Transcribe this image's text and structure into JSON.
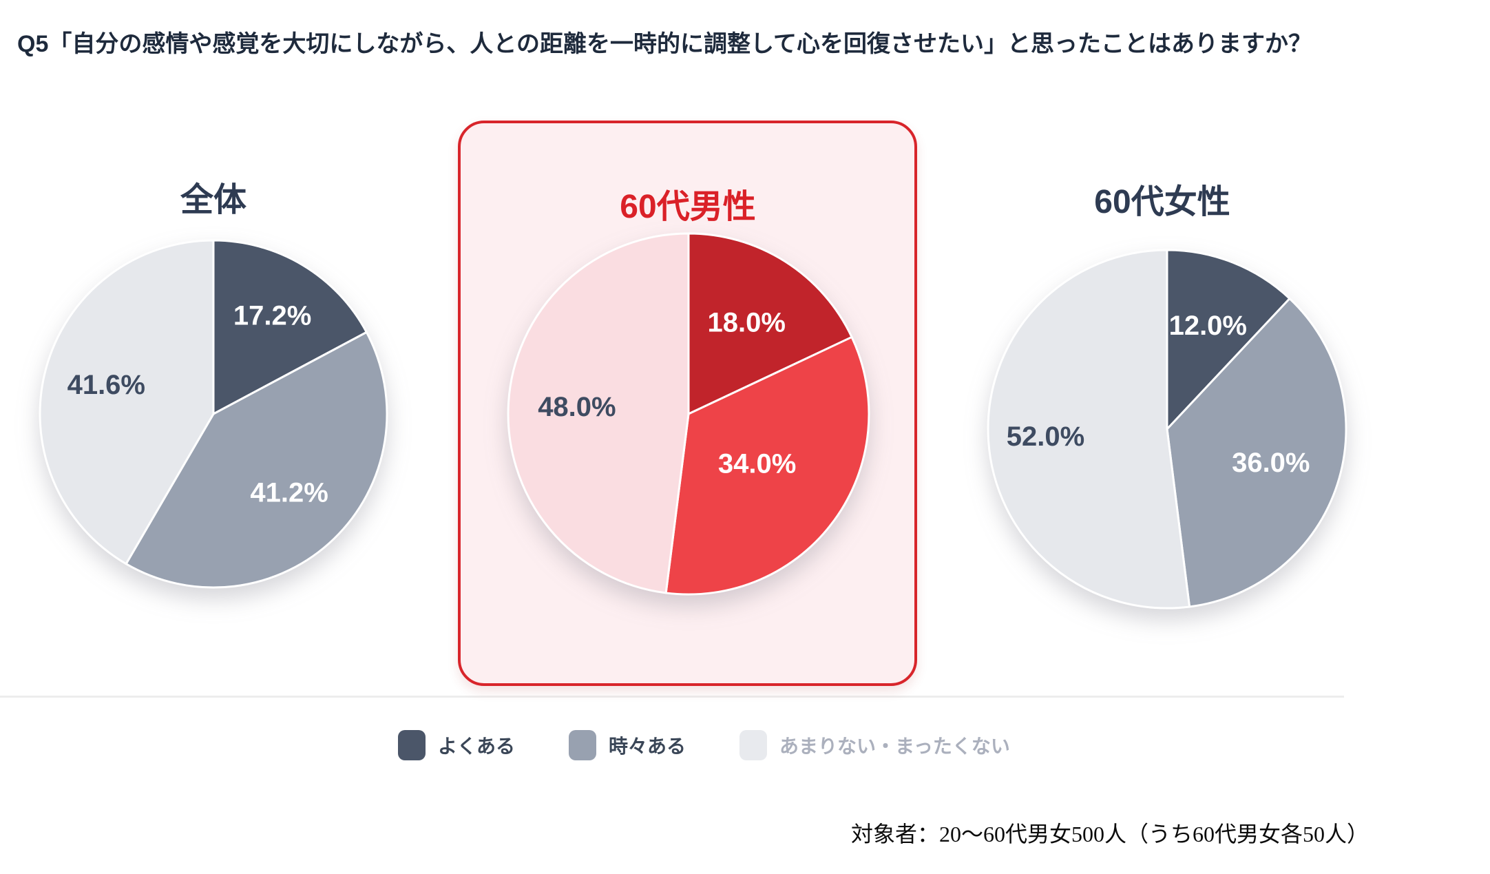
{
  "page": {
    "title": "Q5「自分の感情や感覚を大切にしながら、人との距離を一時的に調整して心を回復させたい」と思ったことはありますか？"
  },
  "highlight": {
    "border_color": "#d8252b",
    "background_color": "#fdeff1",
    "title_color": "#da2128"
  },
  "legend": {
    "items": [
      {
        "label": "よくある",
        "color": "#4b5669",
        "label_color": "#3a4657"
      },
      {
        "label": "時々ある",
        "color": "#98a1b0",
        "label_color": "#3a4657"
      },
      {
        "label": "あまりない・まったくない",
        "color": "#e8eaee",
        "label_color": "#abb0bd"
      }
    ]
  },
  "footer": {
    "note": "対象者：20～60代男女500人（うち60代男女各50人）"
  },
  "chart_data": [
    {
      "type": "pie",
      "title": "全体",
      "highlighted": false,
      "radius": 252,
      "categories": [
        "よくある",
        "時々ある",
        "あまりない・まったくない"
      ],
      "values": [
        17.2,
        41.2,
        41.6
      ],
      "slices": [
        {
          "label": "よくある",
          "value": 17.2,
          "display": "17.2%",
          "color": "#4b5669",
          "label_color": "#ffffff",
          "label_r": 0.66
        },
        {
          "label": "時々ある",
          "value": 41.2,
          "display": "41.2%",
          "color": "#98a1b0",
          "label_color": "#ffffff",
          "label_r": 0.63
        },
        {
          "label": "あまりない・まったくない",
          "value": 41.6,
          "display": "41.6%",
          "color": "#e6e8ec",
          "label_color": "#3e4b61",
          "label_r": 0.64
        }
      ]
    },
    {
      "type": "pie",
      "title": "60代男性",
      "highlighted": true,
      "radius": 262,
      "categories": [
        "よくある",
        "時々ある",
        "あまりない・まったくない"
      ],
      "values": [
        18.0,
        34.0,
        48.0
      ],
      "slices": [
        {
          "label": "よくある",
          "value": 18.0,
          "display": "18.0%",
          "color": "#c1242b",
          "label_color": "#ffffff",
          "label_r": 0.6
        },
        {
          "label": "時々ある",
          "value": 34.0,
          "display": "34.0%",
          "color": "#ee4348",
          "label_color": "#ffffff",
          "label_r": 0.47
        },
        {
          "label": "あまりない・まったくない",
          "value": 48.0,
          "display": "48.0%",
          "color": "#fadde1",
          "label_color": "#3e4b61",
          "label_r": 0.62
        }
      ]
    },
    {
      "type": "pie",
      "title": "60代女性",
      "highlighted": false,
      "radius": 260,
      "categories": [
        "よくある",
        "時々ある",
        "あまりない・まったくない"
      ],
      "values": [
        12.0,
        36.0,
        52.0
      ],
      "slices": [
        {
          "label": "よくある",
          "value": 12.0,
          "display": "12.0%",
          "color": "#4b5669",
          "label_color": "#ffffff",
          "label_r": 0.62
        },
        {
          "label": "時々ある",
          "value": 36.0,
          "display": "36.0%",
          "color": "#98a1b0",
          "label_color": "#ffffff",
          "label_r": 0.61
        },
        {
          "label": "あまりない・まったくない",
          "value": 52.0,
          "display": "52.0%",
          "color": "#e6e8ec",
          "label_color": "#3e4b61",
          "label_r": 0.68
        }
      ]
    }
  ]
}
